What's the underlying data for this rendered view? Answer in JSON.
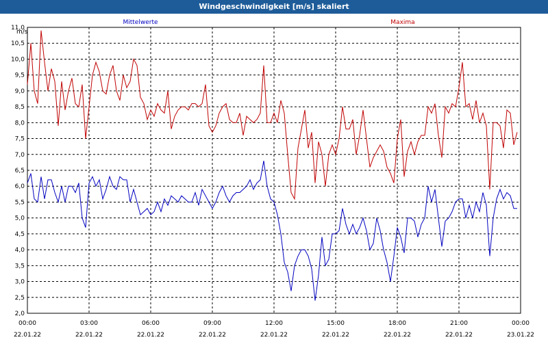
{
  "window": {
    "title": "Windgeschwindigkeit [m/s] skaliert"
  },
  "chart_data": {
    "type": "line",
    "ylabel": "m/s",
    "ylim": [
      2.0,
      11.0
    ],
    "y_ticks": [
      "2,0",
      "2,5",
      "3,0",
      "3,5",
      "4,0",
      "4,5",
      "5,0",
      "5,5",
      "6,0",
      "6,5",
      "7,0",
      "7,5",
      "8,0",
      "8,5",
      "9,0",
      "9,5",
      "10,0",
      "10,5",
      "11,0"
    ],
    "x_ticks": [
      {
        "time": "00:00",
        "date": "22.01.22"
      },
      {
        "time": "03:00",
        "date": "22.01.22"
      },
      {
        "time": "06:00",
        "date": "22.01.22"
      },
      {
        "time": "09:00",
        "date": "22.01.22"
      },
      {
        "time": "12:00",
        "date": "22.01.22"
      },
      {
        "time": "15:00",
        "date": "22.01.22"
      },
      {
        "time": "18:00",
        "date": "22.01.22"
      },
      {
        "time": "21:00",
        "date": "22.01.22"
      },
      {
        "time": "00:00",
        "date": "23.01.22"
      }
    ],
    "xlim": [
      "22.01.22 00:00",
      "23.01.22 00:00"
    ],
    "grid": true,
    "series": [
      {
        "name": "Mittelwerte",
        "color": "#0000c0",
        "points": [
          [
            "00:00",
            6.1
          ],
          [
            "00:10",
            6.4
          ],
          [
            "00:20",
            5.6
          ],
          [
            "00:30",
            5.5
          ],
          [
            "00:40",
            6.3
          ],
          [
            "00:50",
            5.6
          ],
          [
            "01:00",
            6.2
          ],
          [
            "01:10",
            6.2
          ],
          [
            "01:20",
            5.8
          ],
          [
            "01:30",
            5.5
          ],
          [
            "01:40",
            6.0
          ],
          [
            "01:50",
            5.5
          ],
          [
            "02:00",
            6.0
          ],
          [
            "02:10",
            6.0
          ],
          [
            "02:20",
            5.8
          ],
          [
            "02:30",
            6.1
          ],
          [
            "02:40",
            5.0
          ],
          [
            "02:50",
            4.7
          ],
          [
            "03:00",
            6.1
          ],
          [
            "03:10",
            6.3
          ],
          [
            "03:20",
            6.0
          ],
          [
            "03:30",
            6.2
          ],
          [
            "03:40",
            5.6
          ],
          [
            "03:50",
            5.9
          ],
          [
            "04:00",
            6.3
          ],
          [
            "04:10",
            6.0
          ],
          [
            "04:20",
            5.9
          ],
          [
            "04:30",
            6.3
          ],
          [
            "04:40",
            6.2
          ],
          [
            "04:50",
            6.2
          ],
          [
            "05:00",
            5.5
          ],
          [
            "05:10",
            5.9
          ],
          [
            "05:20",
            5.5
          ],
          [
            "05:30",
            5.1
          ],
          [
            "05:40",
            5.2
          ],
          [
            "05:50",
            5.3
          ],
          [
            "06:00",
            5.1
          ],
          [
            "06:10",
            5.2
          ],
          [
            "06:20",
            5.5
          ],
          [
            "06:30",
            5.2
          ],
          [
            "06:40",
            5.6
          ],
          [
            "06:50",
            5.4
          ],
          [
            "07:00",
            5.7
          ],
          [
            "07:10",
            5.6
          ],
          [
            "07:20",
            5.5
          ],
          [
            "07:30",
            5.7
          ],
          [
            "07:40",
            5.6
          ],
          [
            "07:50",
            5.5
          ],
          [
            "08:00",
            5.5
          ],
          [
            "08:10",
            5.8
          ],
          [
            "08:20",
            5.4
          ],
          [
            "08:30",
            5.9
          ],
          [
            "08:40",
            5.7
          ],
          [
            "08:50",
            5.5
          ],
          [
            "09:00",
            5.3
          ],
          [
            "09:10",
            5.5
          ],
          [
            "09:20",
            5.8
          ],
          [
            "09:30",
            6.0
          ],
          [
            "09:40",
            5.7
          ],
          [
            "09:50",
            5.5
          ],
          [
            "10:00",
            5.7
          ],
          [
            "10:10",
            5.8
          ],
          [
            "10:20",
            5.8
          ],
          [
            "10:30",
            5.9
          ],
          [
            "10:40",
            6.0
          ],
          [
            "10:50",
            6.2
          ],
          [
            "11:00",
            5.9
          ],
          [
            "11:10",
            6.1
          ],
          [
            "11:20",
            6.2
          ],
          [
            "11:30",
            6.8
          ],
          [
            "11:40",
            6.0
          ],
          [
            "11:50",
            5.6
          ],
          [
            "12:00",
            5.5
          ],
          [
            "12:10",
            5.1
          ],
          [
            "12:20",
            4.5
          ],
          [
            "12:30",
            3.6
          ],
          [
            "12:40",
            3.3
          ],
          [
            "12:50",
            2.7
          ],
          [
            "13:00",
            3.5
          ],
          [
            "13:10",
            3.8
          ],
          [
            "13:20",
            4.0
          ],
          [
            "13:30",
            4.0
          ],
          [
            "13:40",
            3.8
          ],
          [
            "13:50",
            3.4
          ],
          [
            "14:00",
            2.4
          ],
          [
            "14:10",
            3.2
          ],
          [
            "14:20",
            4.4
          ],
          [
            "14:30",
            3.5
          ],
          [
            "14:40",
            3.7
          ],
          [
            "14:50",
            4.5
          ],
          [
            "15:00",
            4.5
          ],
          [
            "15:10",
            4.6
          ],
          [
            "15:20",
            5.3
          ],
          [
            "15:30",
            4.8
          ],
          [
            "15:40",
            4.5
          ],
          [
            "15:50",
            4.8
          ],
          [
            "16:00",
            4.5
          ],
          [
            "16:10",
            4.7
          ],
          [
            "16:20",
            5.0
          ],
          [
            "16:30",
            4.6
          ],
          [
            "16:40",
            4.0
          ],
          [
            "16:50",
            4.2
          ],
          [
            "17:00",
            5.0
          ],
          [
            "17:10",
            4.6
          ],
          [
            "17:20",
            4.0
          ],
          [
            "17:30",
            3.6
          ],
          [
            "17:40",
            3.0
          ],
          [
            "17:50",
            3.8
          ],
          [
            "18:00",
            4.7
          ],
          [
            "18:10",
            4.4
          ],
          [
            "18:20",
            3.9
          ],
          [
            "18:30",
            5.0
          ],
          [
            "18:40",
            5.0
          ],
          [
            "18:50",
            4.9
          ],
          [
            "19:00",
            4.4
          ],
          [
            "19:10",
            4.8
          ],
          [
            "19:20",
            5.0
          ],
          [
            "19:30",
            6.0
          ],
          [
            "19:40",
            5.5
          ],
          [
            "19:50",
            5.9
          ],
          [
            "20:00",
            5.0
          ],
          [
            "20:10",
            4.1
          ],
          [
            "20:20",
            4.9
          ],
          [
            "20:30",
            5.0
          ],
          [
            "20:40",
            5.2
          ],
          [
            "20:50",
            5.5
          ],
          [
            "21:00",
            5.6
          ],
          [
            "21:10",
            5.6
          ],
          [
            "21:20",
            5.0
          ],
          [
            "21:30",
            5.4
          ],
          [
            "21:40",
            5.0
          ],
          [
            "21:50",
            5.5
          ],
          [
            "22:00",
            5.2
          ],
          [
            "22:10",
            5.8
          ],
          [
            "22:20",
            5.4
          ],
          [
            "22:30",
            3.8
          ],
          [
            "22:40",
            5.0
          ],
          [
            "22:50",
            5.6
          ],
          [
            "23:00",
            5.9
          ],
          [
            "23:10",
            5.6
          ],
          [
            "23:20",
            5.8
          ],
          [
            "23:30",
            5.7
          ],
          [
            "23:40",
            5.3
          ],
          [
            "23:50",
            5.3
          ]
        ]
      },
      {
        "name": "Maxima",
        "color": "#c00000",
        "points": [
          [
            "00:00",
            9.2
          ],
          [
            "00:10",
            10.5
          ],
          [
            "00:20",
            9.0
          ],
          [
            "00:30",
            8.6
          ],
          [
            "00:40",
            10.9
          ],
          [
            "00:50",
            9.9
          ],
          [
            "01:00",
            9.0
          ],
          [
            "01:10",
            9.7
          ],
          [
            "01:20",
            9.3
          ],
          [
            "01:30",
            7.9
          ],
          [
            "01:40",
            9.3
          ],
          [
            "01:50",
            8.4
          ],
          [
            "02:00",
            9.0
          ],
          [
            "02:10",
            9.4
          ],
          [
            "02:20",
            8.6
          ],
          [
            "02:30",
            8.5
          ],
          [
            "02:40",
            9.2
          ],
          [
            "02:50",
            7.5
          ],
          [
            "03:00",
            8.5
          ],
          [
            "03:10",
            9.5
          ],
          [
            "03:20",
            9.9
          ],
          [
            "03:30",
            9.6
          ],
          [
            "03:40",
            9.0
          ],
          [
            "03:50",
            8.9
          ],
          [
            "04:00",
            9.5
          ],
          [
            "04:10",
            9.8
          ],
          [
            "04:20",
            9.0
          ],
          [
            "04:30",
            8.7
          ],
          [
            "04:40",
            9.5
          ],
          [
            "04:50",
            9.1
          ],
          [
            "05:00",
            9.3
          ],
          [
            "05:10",
            10.0
          ],
          [
            "05:20",
            9.8
          ],
          [
            "05:30",
            8.8
          ],
          [
            "05:40",
            8.6
          ],
          [
            "05:50",
            8.1
          ],
          [
            "06:00",
            8.4
          ],
          [
            "06:10",
            8.2
          ],
          [
            "06:20",
            8.6
          ],
          [
            "06:30",
            8.4
          ],
          [
            "06:40",
            8.3
          ],
          [
            "06:50",
            9.0
          ],
          [
            "07:00",
            7.8
          ],
          [
            "07:10",
            8.2
          ],
          [
            "07:20",
            8.4
          ],
          [
            "07:30",
            8.5
          ],
          [
            "07:40",
            8.5
          ],
          [
            "07:50",
            8.4
          ],
          [
            "08:00",
            8.6
          ],
          [
            "08:10",
            8.6
          ],
          [
            "08:20",
            8.5
          ],
          [
            "08:30",
            8.6
          ],
          [
            "08:40",
            9.2
          ],
          [
            "08:50",
            7.9
          ],
          [
            "09:00",
            7.7
          ],
          [
            "09:10",
            7.9
          ],
          [
            "09:20",
            8.3
          ],
          [
            "09:30",
            8.5
          ],
          [
            "09:40",
            8.6
          ],
          [
            "09:50",
            8.1
          ],
          [
            "10:00",
            8.0
          ],
          [
            "10:10",
            8.0
          ],
          [
            "10:20",
            8.3
          ],
          [
            "10:30",
            7.6
          ],
          [
            "10:40",
            8.2
          ],
          [
            "10:50",
            8.1
          ],
          [
            "11:00",
            8.0
          ],
          [
            "11:10",
            8.1
          ],
          [
            "11:20",
            8.3
          ],
          [
            "11:30",
            9.8
          ],
          [
            "11:40",
            8.0
          ],
          [
            "11:50",
            8.0
          ],
          [
            "12:00",
            8.3
          ],
          [
            "12:10",
            8.0
          ],
          [
            "12:20",
            8.7
          ],
          [
            "12:30",
            8.3
          ],
          [
            "12:40",
            7.0
          ],
          [
            "12:50",
            5.8
          ],
          [
            "13:00",
            5.6
          ],
          [
            "13:10",
            7.2
          ],
          [
            "13:20",
            7.8
          ],
          [
            "13:30",
            8.4
          ],
          [
            "13:40",
            7.2
          ],
          [
            "13:50",
            7.7
          ],
          [
            "14:00",
            6.1
          ],
          [
            "14:10",
            7.4
          ],
          [
            "14:20",
            7.0
          ],
          [
            "14:30",
            6.0
          ],
          [
            "14:40",
            7.0
          ],
          [
            "14:50",
            7.3
          ],
          [
            "15:00",
            7.0
          ],
          [
            "15:10",
            7.5
          ],
          [
            "15:20",
            8.5
          ],
          [
            "15:30",
            7.8
          ],
          [
            "15:40",
            7.8
          ],
          [
            "15:50",
            8.1
          ],
          [
            "16:00",
            7.0
          ],
          [
            "16:10",
            7.6
          ],
          [
            "16:20",
            8.4
          ],
          [
            "16:30",
            7.5
          ],
          [
            "16:40",
            6.6
          ],
          [
            "16:50",
            6.9
          ],
          [
            "17:00",
            7.1
          ],
          [
            "17:10",
            7.3
          ],
          [
            "17:20",
            7.1
          ],
          [
            "17:30",
            6.6
          ],
          [
            "17:40",
            6.4
          ],
          [
            "17:50",
            6.1
          ],
          [
            "18:00",
            7.5
          ],
          [
            "18:10",
            8.1
          ],
          [
            "18:20",
            6.3
          ],
          [
            "18:30",
            7.1
          ],
          [
            "18:40",
            7.4
          ],
          [
            "18:50",
            7.0
          ],
          [
            "19:00",
            7.4
          ],
          [
            "19:10",
            7.6
          ],
          [
            "19:20",
            7.6
          ],
          [
            "19:30",
            8.5
          ],
          [
            "19:40",
            8.3
          ],
          [
            "19:50",
            8.6
          ],
          [
            "20:00",
            7.6
          ],
          [
            "20:10",
            6.9
          ],
          [
            "20:20",
            8.5
          ],
          [
            "20:30",
            8.3
          ],
          [
            "20:40",
            8.6
          ],
          [
            "20:50",
            8.5
          ],
          [
            "21:00",
            9.1
          ],
          [
            "21:10",
            9.9
          ],
          [
            "21:20",
            8.5
          ],
          [
            "21:30",
            8.6
          ],
          [
            "21:40",
            8.1
          ],
          [
            "21:50",
            8.7
          ],
          [
            "22:00",
            8.0
          ],
          [
            "22:10",
            8.3
          ],
          [
            "22:20",
            7.9
          ],
          [
            "22:30",
            5.9
          ],
          [
            "22:40",
            8.0
          ],
          [
            "22:50",
            8.0
          ],
          [
            "23:00",
            7.9
          ],
          [
            "23:10",
            7.2
          ],
          [
            "23:20",
            8.4
          ],
          [
            "23:30",
            8.3
          ],
          [
            "23:40",
            7.3
          ],
          [
            "23:50",
            7.7
          ]
        ]
      }
    ]
  }
}
